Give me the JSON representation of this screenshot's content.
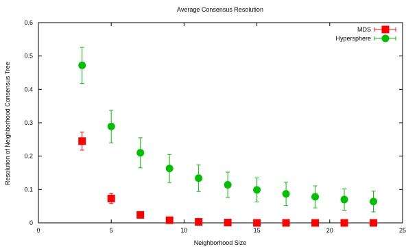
{
  "chart_data": {
    "type": "scatter",
    "title": "Average Consensus Resolution",
    "xlabel": "Neighborhood Size",
    "ylabel": "Resolution of Neighborhood Consensus Tree",
    "xlim": [
      0,
      25
    ],
    "ylim": [
      0,
      0.6
    ],
    "xticks": [
      "0",
      "5",
      "10",
      "15",
      "20",
      "25"
    ],
    "yticks": [
      "0",
      "0.1",
      "0.2",
      "0.3",
      "0.4",
      "0.5",
      "0.6"
    ],
    "grid": false,
    "legend_position": "top-right",
    "series": [
      {
        "name": "MDS",
        "marker": "square",
        "color": "#ff0000",
        "x": [
          3,
          5,
          7,
          9,
          11,
          13,
          15,
          17,
          19,
          21,
          23
        ],
        "y": [
          0.245,
          0.073,
          0.024,
          0.008,
          0.003,
          0.001,
          0.0,
          0.0,
          0.0,
          0.0,
          0.0
        ],
        "err": [
          0.027,
          0.015,
          0.004,
          0.002,
          0.001,
          0.0,
          0.0,
          0.0,
          0.0,
          0.0,
          0.0
        ]
      },
      {
        "name": "Hypersphere",
        "marker": "circle",
        "color": "#00c000",
        "x": [
          3,
          5,
          7,
          9,
          11,
          13,
          15,
          17,
          19,
          21,
          23
        ],
        "y": [
          0.472,
          0.289,
          0.21,
          0.163,
          0.134,
          0.114,
          0.099,
          0.087,
          0.078,
          0.07,
          0.064
        ],
        "err": [
          0.054,
          0.049,
          0.045,
          0.042,
          0.04,
          0.038,
          0.036,
          0.035,
          0.033,
          0.032,
          0.031
        ]
      }
    ]
  }
}
